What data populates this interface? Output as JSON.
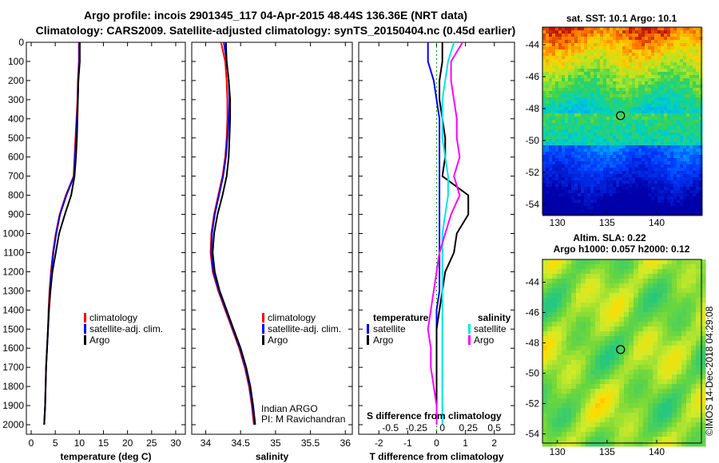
{
  "titles": {
    "line1": "Argo profile: incois 2901345_117 04-Apr-2015 48.44S 136.36E (NRT data)",
    "line2": "Climatology: CARS2009. Satellite-adjusted climatology: synTS_20150404.nc (0.45d earlier)"
  },
  "credit": "©IMOS 14-Dec-2018 04:29:08",
  "colors": {
    "climatology": "#ff0000",
    "satellite": "#0000ff",
    "argo": "#000000",
    "cyan": "#00e6e6",
    "magenta": "#ff00ff"
  },
  "chart_data": [
    {
      "name": "temp-panel",
      "type": "line",
      "xlabel": "temperature (deg C)",
      "ylabel": "",
      "xlim": [
        -1,
        32
      ],
      "ylim": [
        2050,
        0
      ],
      "xticks": [
        "0",
        "5",
        "10",
        "15",
        "20",
        "25",
        "30"
      ],
      "xtick_values": [
        0,
        5,
        10,
        15,
        20,
        25,
        30
      ],
      "yticks": [
        "0",
        "100",
        "200",
        "300",
        "400",
        "500",
        "600",
        "700",
        "800",
        "900",
        "1000",
        "1100",
        "1200",
        "1300",
        "1400",
        "1500",
        "1600",
        "1700",
        "1800",
        "1900",
        "2000"
      ],
      "ytick_values": [
        0,
        100,
        200,
        300,
        400,
        500,
        600,
        700,
        800,
        900,
        1000,
        1100,
        1200,
        1300,
        1400,
        1500,
        1600,
        1700,
        1800,
        1900,
        2000
      ],
      "legend": [
        "climatology",
        "satellite-adj. clim.",
        "Argo"
      ],
      "series": [
        {
          "name": "climatology",
          "color": "#ff0000",
          "x": [
            9.9,
            9.9,
            9.7,
            9.6,
            9.4,
            9.2,
            9.0,
            8.8,
            7.2,
            5.9,
            5.1,
            4.5,
            4.1,
            3.8,
            3.6,
            3.5,
            3.3,
            3.1,
            3.0,
            2.9,
            2.7
          ],
          "y": [
            0,
            100,
            200,
            300,
            400,
            500,
            600,
            700,
            800,
            900,
            1000,
            1100,
            1200,
            1300,
            1400,
            1500,
            1600,
            1700,
            1800,
            1900,
            2000
          ]
        },
        {
          "name": "satellite-adj. clim.",
          "color": "#0000ff",
          "x": [
            10.0,
            10.0,
            9.8,
            9.7,
            9.5,
            9.3,
            9.1,
            8.9,
            7.3,
            6.0,
            5.2,
            4.6,
            4.2,
            3.9,
            3.7,
            3.5,
            3.3,
            3.1,
            3.0,
            2.9,
            2.7
          ],
          "y": [
            0,
            100,
            200,
            300,
            400,
            500,
            600,
            700,
            800,
            900,
            1000,
            1100,
            1200,
            1300,
            1400,
            1500,
            1600,
            1700,
            1800,
            1900,
            2000
          ]
        },
        {
          "name": "Argo",
          "color": "#000000",
          "x": [
            10.1,
            10.1,
            9.8,
            9.7,
            9.6,
            9.5,
            9.3,
            9.0,
            8.3,
            7.0,
            5.8,
            5.1,
            4.4,
            4.0,
            3.7,
            3.5,
            3.3,
            3.1,
            3.0,
            2.9,
            2.7
          ],
          "y": [
            0,
            100,
            200,
            300,
            400,
            500,
            600,
            700,
            800,
            900,
            1000,
            1100,
            1200,
            1300,
            1400,
            1500,
            1600,
            1700,
            1800,
            1900,
            2000
          ]
        }
      ]
    },
    {
      "name": "salinity-panel",
      "type": "line",
      "xlabel": "salinity",
      "xlim": [
        33.8,
        36.1
      ],
      "ylim": [
        2050,
        0
      ],
      "xticks": [
        "34",
        "34.5",
        "35",
        "35.5",
        "36"
      ],
      "xtick_values": [
        34,
        34.5,
        35,
        35.5,
        36
      ],
      "legend": [
        "climatology",
        "satellite-adj. clim.",
        "Argo"
      ],
      "annotation": [
        "Indian ARGO",
        "PI: M Ravichandran"
      ],
      "series": [
        {
          "name": "climatology",
          "color": "#ff0000",
          "x": [
            34.22,
            34.28,
            34.3,
            34.31,
            34.31,
            34.3,
            34.28,
            34.24,
            34.18,
            34.12,
            34.08,
            34.07,
            34.1,
            34.18,
            34.28,
            34.38,
            34.48,
            34.56,
            34.62,
            34.66,
            34.69
          ],
          "y": [
            0,
            100,
            200,
            300,
            400,
            500,
            600,
            700,
            800,
            900,
            1000,
            1100,
            1200,
            1300,
            1400,
            1500,
            1600,
            1700,
            1800,
            1900,
            2000
          ]
        },
        {
          "name": "satellite-adj. clim.",
          "color": "#0000ff",
          "x": [
            34.26,
            34.3,
            34.33,
            34.34,
            34.33,
            34.31,
            34.29,
            34.25,
            34.19,
            34.13,
            34.09,
            34.08,
            34.11,
            34.19,
            34.29,
            34.39,
            34.49,
            34.57,
            34.63,
            34.67,
            34.7
          ],
          "y": [
            0,
            100,
            200,
            300,
            400,
            500,
            600,
            700,
            800,
            900,
            1000,
            1100,
            1200,
            1300,
            1400,
            1500,
            1600,
            1700,
            1800,
            1900,
            2000
          ]
        },
        {
          "name": "Argo",
          "color": "#000000",
          "x": [
            34.29,
            34.3,
            34.33,
            34.35,
            34.35,
            34.34,
            34.33,
            34.3,
            34.24,
            34.17,
            34.12,
            34.1,
            34.13,
            34.2,
            34.3,
            34.4,
            34.5,
            34.58,
            34.64,
            34.68,
            34.71
          ],
          "y": [
            0,
            100,
            200,
            300,
            400,
            500,
            600,
            700,
            800,
            900,
            1000,
            1100,
            1200,
            1300,
            1400,
            1500,
            1600,
            1700,
            1800,
            1900,
            2000
          ]
        }
      ]
    },
    {
      "name": "difference-panel",
      "type": "line",
      "xlabel": "T difference from climatology",
      "xlabel2": "S difference from climatology",
      "xlim": [
        -2.7,
        2.7
      ],
      "ylim": [
        2050,
        0
      ],
      "xticks": [
        "-2",
        "-1",
        "0",
        "1",
        "2"
      ],
      "xtick_values": [
        -2,
        -1,
        0,
        1,
        2
      ],
      "sticks": [
        "-0.5",
        "-0.25",
        "0",
        "0.25",
        "0.5"
      ],
      "stick_values": [
        -1.6,
        -0.7,
        0.2,
        1.1,
        2.0
      ],
      "legend_left_title": "temperature",
      "legend_left": [
        "satellite",
        "Argo"
      ],
      "legend_right_title": "salinity",
      "legend_right": [
        "satellite",
        "Argo"
      ],
      "series": [
        {
          "name": "temperature satellite",
          "color": "#0000ff",
          "x": [
            -0.3,
            -0.3,
            -0.1,
            0.0,
            0.1,
            0.1,
            0.1,
            0.1,
            0.1,
            0.1,
            0.1,
            0.1,
            0.1,
            0.1,
            0.0,
            0.0,
            0.0,
            0.0,
            0.0,
            0.0,
            0.0
          ],
          "y": [
            0,
            100,
            200,
            300,
            400,
            500,
            600,
            700,
            800,
            900,
            1000,
            1100,
            1200,
            1300,
            1400,
            1500,
            1600,
            1700,
            1800,
            1900,
            2000
          ]
        },
        {
          "name": "temperature Argo",
          "color": "#000000",
          "x": [
            0.2,
            0.2,
            0.1,
            0.1,
            0.2,
            0.3,
            0.3,
            0.2,
            1.1,
            1.1,
            0.7,
            0.6,
            0.3,
            0.2,
            0.1,
            0.0,
            0.0,
            0.0,
            0.0,
            0.0,
            0.0
          ],
          "y": [
            0,
            100,
            200,
            300,
            400,
            500,
            600,
            700,
            800,
            900,
            1000,
            1100,
            1200,
            1300,
            1400,
            1500,
            1600,
            1700,
            1800,
            1900,
            2000
          ]
        },
        {
          "name": "salinity satellite",
          "color": "#00e6e6",
          "x": [
            0.6,
            0.4,
            0.3,
            0.2,
            0.2,
            0.2,
            0.3,
            0.4,
            0.4,
            0.3,
            0.2,
            0.2,
            0.2,
            0.2,
            0.2,
            0.2,
            0.2,
            0.2,
            0.2,
            0.2,
            0.2
          ],
          "y": [
            0,
            100,
            200,
            300,
            400,
            500,
            600,
            700,
            800,
            900,
            1000,
            1100,
            1200,
            1300,
            1400,
            1500,
            1600,
            1700,
            1800,
            1900,
            2000
          ]
        },
        {
          "name": "salinity Argo",
          "color": "#ff00ff",
          "x": [
            0.9,
            0.5,
            0.5,
            0.6,
            0.7,
            0.7,
            0.8,
            0.6,
            0.8,
            0.5,
            0.3,
            0.1,
            0.0,
            -0.1,
            -0.2,
            -0.3,
            -0.2,
            -0.2,
            -0.1,
            0.0,
            0.0
          ],
          "y": [
            0,
            100,
            200,
            300,
            400,
            500,
            600,
            700,
            800,
            900,
            1000,
            1100,
            1200,
            1300,
            1400,
            1500,
            1600,
            1700,
            1800,
            1900,
            2000
          ]
        }
      ]
    },
    {
      "name": "sst-map",
      "type": "heatmap",
      "title": "sat. SST: 10.1 Argo: 10.1",
      "xlim": [
        128.5,
        144.5
      ],
      "ylim": [
        -54.6,
        -42.9
      ],
      "xticks": [
        "130",
        "135",
        "140"
      ],
      "xtick_values": [
        130,
        135,
        140
      ],
      "yticks": [
        "-44",
        "-46",
        "-48",
        "-50",
        "-52",
        "-54"
      ],
      "ytick_values": [
        -44,
        -46,
        -48,
        -50,
        -52,
        -54
      ],
      "marker": {
        "lon": 136.36,
        "lat": -48.44
      }
    },
    {
      "name": "sla-map",
      "type": "heatmap",
      "title": "Altim. SLA: 0.22",
      "subtitle": "Argo h1000: 0.057 h2000: 0.12",
      "xlim": [
        128.5,
        144.5
      ],
      "ylim": [
        -54.6,
        -42.5
      ],
      "xticks": [
        "130",
        "135",
        "140"
      ],
      "xtick_values": [
        130,
        135,
        140
      ],
      "yticks": [
        "-44",
        "-46",
        "-48",
        "-50",
        "-52",
        "-54"
      ],
      "ytick_values": [
        -44,
        -46,
        -48,
        -50,
        -52,
        -54
      ],
      "marker": {
        "lon": 136.36,
        "lat": -48.44
      }
    }
  ]
}
